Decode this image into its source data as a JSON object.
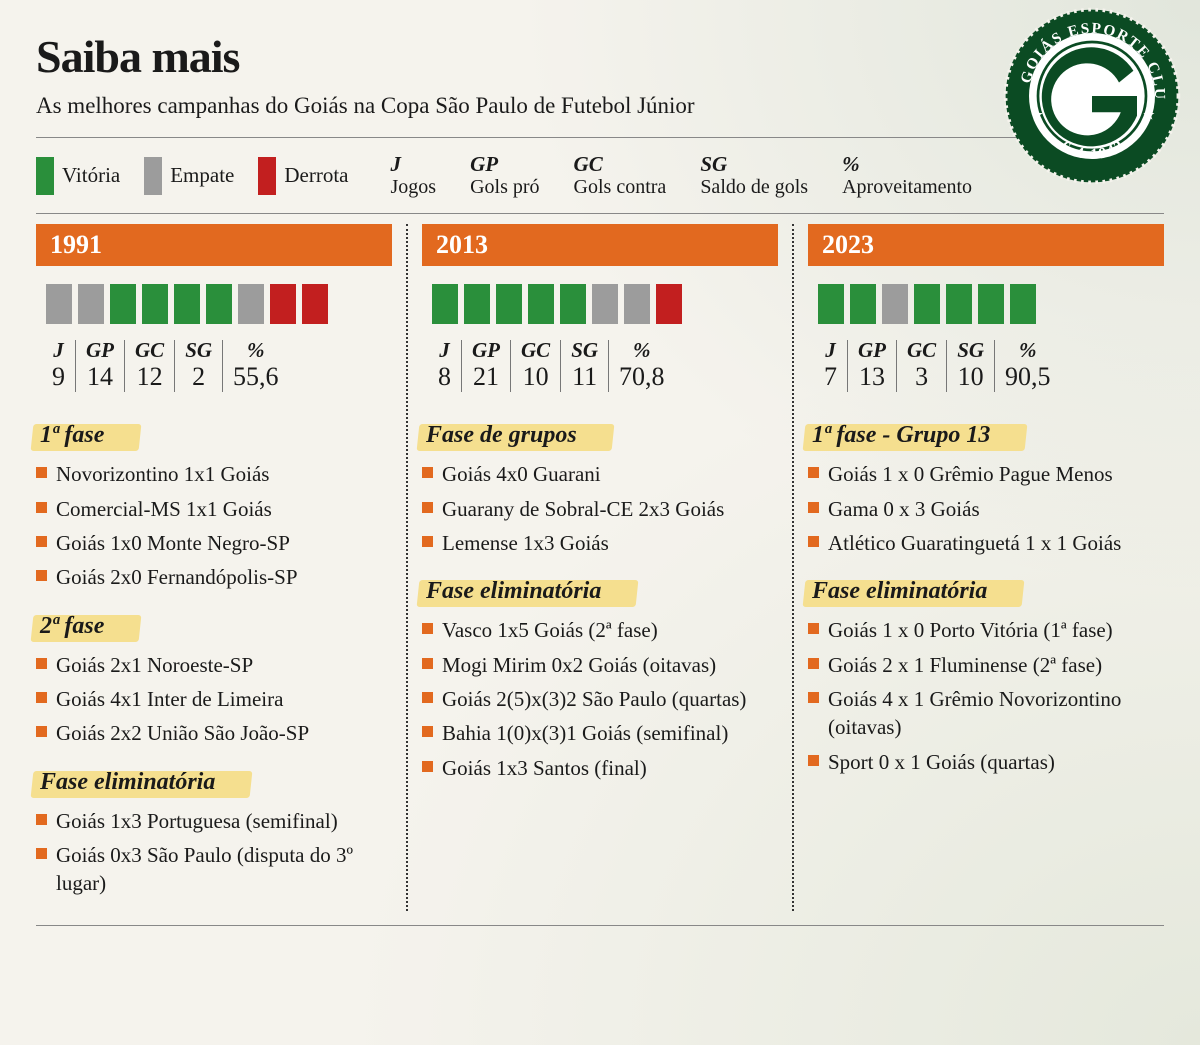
{
  "title": "Saiba mais",
  "subtitle": "As melhores campanhas do Goiás na Copa São Paulo de Futebol Júnior",
  "colors": {
    "win": "#2a8f3b",
    "draw": "#9c9c9c",
    "loss": "#c21f1f",
    "orange": "#e2691f",
    "highlight": "#f5df8f",
    "background": "#f5f3ed"
  },
  "legend": {
    "results": [
      {
        "label": "Vitória",
        "color_key": "win"
      },
      {
        "label": "Empate",
        "color_key": "draw"
      },
      {
        "label": "Derrota",
        "color_key": "loss"
      }
    ],
    "defs": [
      {
        "abbr": "J",
        "full": "Jogos"
      },
      {
        "abbr": "GP",
        "full": "Gols pró"
      },
      {
        "abbr": "GC",
        "full": "Gols contra"
      },
      {
        "abbr": "SG",
        "full": "Saldo de gols"
      },
      {
        "abbr": "%",
        "full": "Aproveitamento"
      }
    ]
  },
  "logo": {
    "text_top": "GOIÁS ESPORTE CLUBE",
    "text_bottom": "6-4-1943",
    "ring_color": "#0b4b23",
    "inner_color": "#ffffff",
    "g_color": "#0b4b23"
  },
  "campaigns": [
    {
      "year": "1991",
      "results": [
        "draw",
        "draw",
        "win",
        "win",
        "win",
        "win",
        "draw",
        "loss",
        "loss"
      ],
      "stats": {
        "J": "9",
        "GP": "14",
        "GC": "12",
        "SG": "2",
        "pct": "55,6"
      },
      "phases": [
        {
          "title": "1ª fase",
          "matches": [
            "Novorizontino 1x1 Goiás",
            "Comercial-MS 1x1 Goiás",
            "Goiás 1x0 Monte Negro-SP",
            "Goiás 2x0 Fernandópolis-SP"
          ]
        },
        {
          "title": "2ª fase",
          "matches": [
            "Goiás 2x1 Noroeste-SP",
            "Goiás 4x1 Inter de Limeira",
            "Goiás 2x2 União São João-SP"
          ]
        },
        {
          "title": "Fase eliminatória",
          "matches": [
            "Goiás 1x3 Portuguesa (semifinal)",
            "Goiás 0x3 São Paulo (disputa do 3º lugar)"
          ]
        }
      ]
    },
    {
      "year": "2013",
      "results": [
        "win",
        "win",
        "win",
        "win",
        "win",
        "draw",
        "draw",
        "loss"
      ],
      "stats": {
        "J": "8",
        "GP": "21",
        "GC": "10",
        "SG": "11",
        "pct": "70,8"
      },
      "phases": [
        {
          "title": "Fase de grupos",
          "matches": [
            "Goiás 4x0 Guarani",
            "Guarany de Sobral-CE 2x3 Goiás",
            "Lemense 1x3 Goiás"
          ]
        },
        {
          "title": "Fase eliminatória",
          "matches": [
            "Vasco 1x5 Goiás (2ª fase)",
            "Mogi Mirim 0x2 Goiás (oitavas)",
            "Goiás 2(5)x(3)2 São Paulo (quartas)",
            "Bahia 1(0)x(3)1 Goiás (semifinal)",
            "Goiás 1x3 Santos (final)"
          ]
        }
      ]
    },
    {
      "year": "2023",
      "results": [
        "win",
        "win",
        "draw",
        "win",
        "win",
        "win",
        "win"
      ],
      "stats": {
        "J": "7",
        "GP": "13",
        "GC": "3",
        "SG": "10",
        "pct": "90,5"
      },
      "phases": [
        {
          "title": "1ª fase - Grupo 13",
          "matches": [
            "Goiás 1 x 0 Grêmio Pague Menos",
            "Gama 0 x 3 Goiás",
            "Atlético Guaratinguetá 1 x 1 Goiás"
          ]
        },
        {
          "title": "Fase eliminatória",
          "matches": [
            "Goiás 1 x 0 Porto Vitória (1ª fase)",
            "Goiás 2 x 1 Fluminense (2ª fase)",
            "Goiás 4 x 1 Grêmio Novorizontino (oitavas)",
            "Sport 0 x 1 Goiás (quartas)"
          ]
        }
      ]
    }
  ]
}
